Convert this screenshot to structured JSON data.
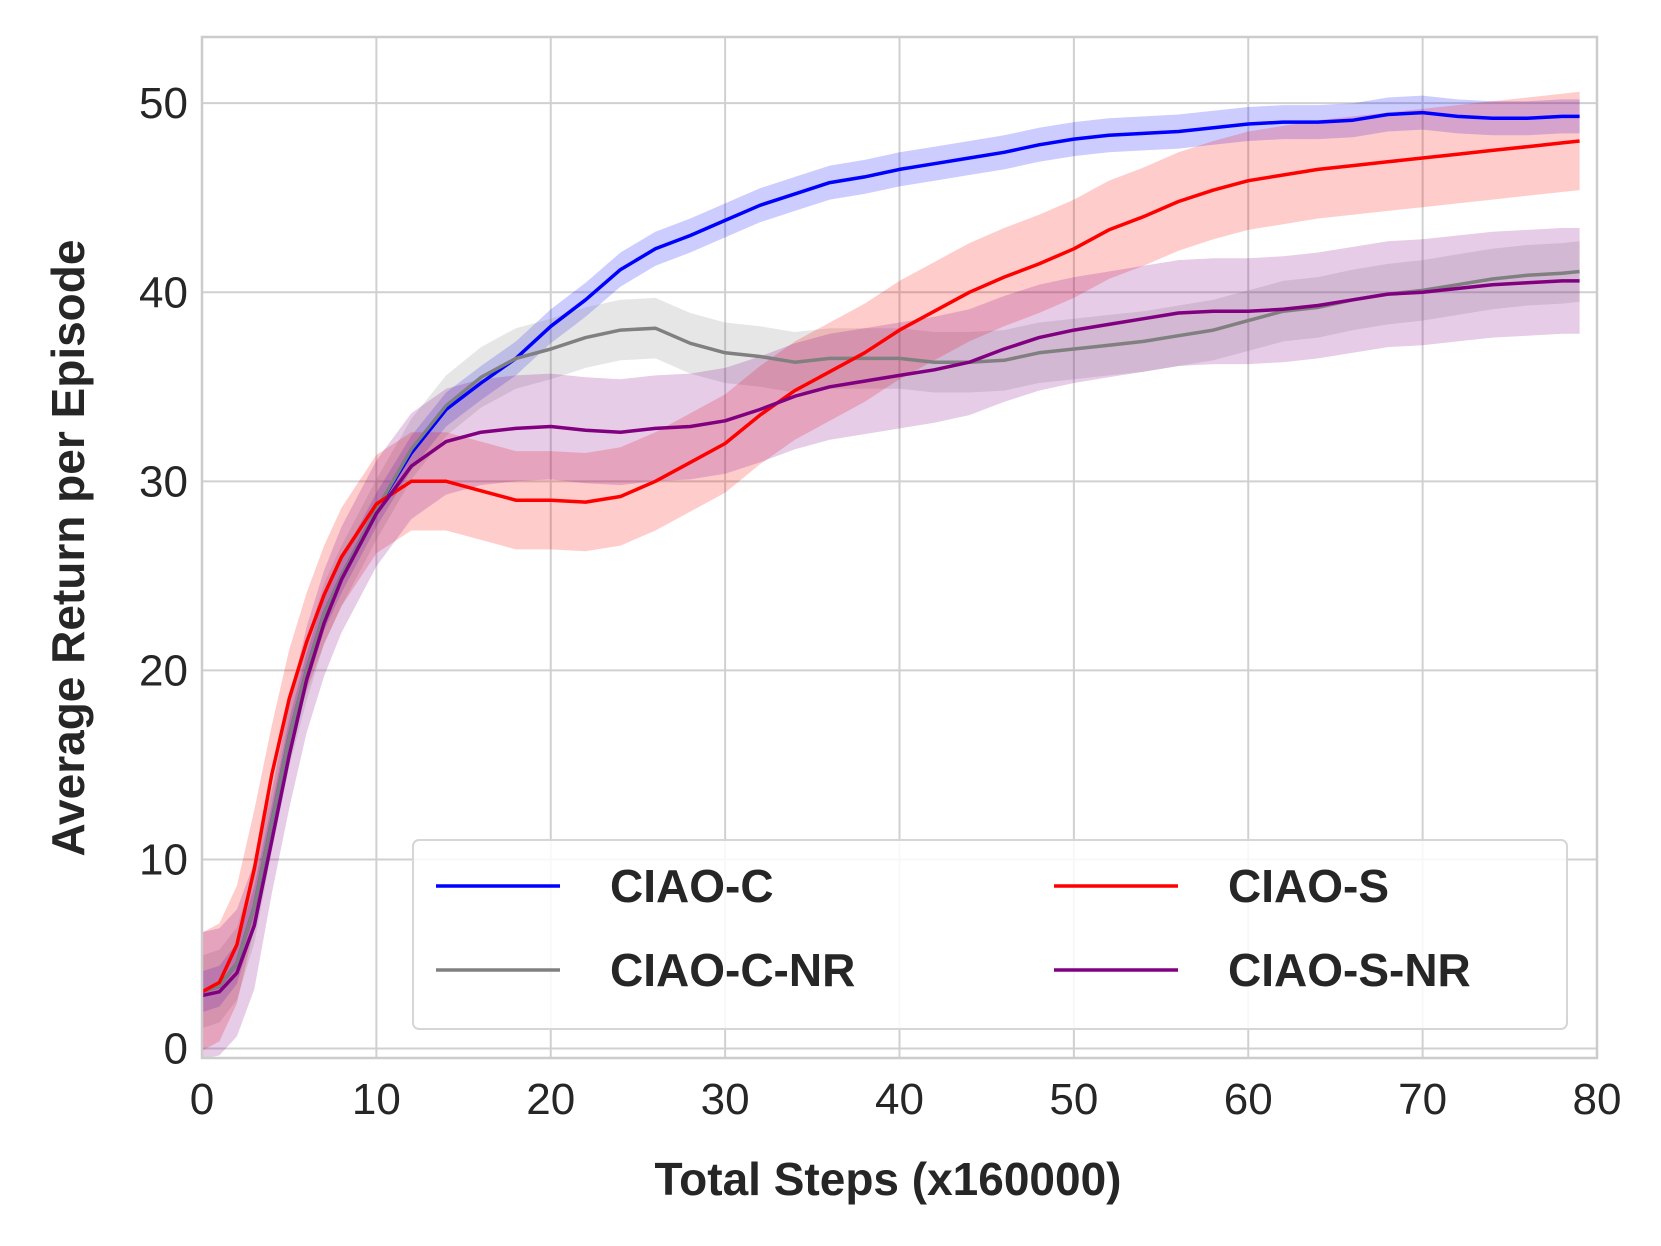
{
  "chart_data": {
    "type": "line",
    "title": "",
    "xlabel": "Total Steps (x160000)",
    "ylabel": "Average Return per Episode",
    "xlim": [
      0,
      80
    ],
    "ylim": [
      -0.5,
      53.5
    ],
    "xticks": [
      0,
      10,
      20,
      30,
      40,
      50,
      60,
      70,
      80
    ],
    "yticks": [
      0,
      10,
      20,
      30,
      40,
      50
    ],
    "grid": true,
    "legend_position": "lower-right",
    "x": [
      0,
      1,
      2,
      3,
      4,
      5,
      6,
      7,
      8,
      10,
      12,
      14,
      16,
      18,
      20,
      22,
      24,
      26,
      28,
      30,
      32,
      34,
      36,
      38,
      40,
      42,
      44,
      46,
      48,
      50,
      52,
      54,
      56,
      58,
      60,
      62,
      64,
      66,
      68,
      70,
      72,
      74,
      76,
      78,
      79
    ],
    "series": [
      {
        "name": "CIAO-C",
        "color": "#0000ff",
        "values": [
          3.0,
          3.3,
          4.5,
          7.5,
          12.0,
          16.5,
          20.0,
          23.0,
          25.0,
          28.5,
          31.5,
          33.8,
          35.2,
          36.5,
          38.2,
          39.6,
          41.2,
          42.3,
          43.0,
          43.8,
          44.6,
          45.2,
          45.8,
          46.1,
          46.5,
          46.8,
          47.1,
          47.4,
          47.8,
          48.1,
          48.3,
          48.4,
          48.5,
          48.7,
          48.9,
          49.0,
          49.0,
          49.1,
          49.4,
          49.5,
          49.3,
          49.2,
          49.2,
          49.3,
          49.3
        ],
        "band": 0.9
      },
      {
        "name": "CIAO-C-NR",
        "color": "#808080",
        "values": [
          3.0,
          3.3,
          4.5,
          7.5,
          12.0,
          16.5,
          20.0,
          23.0,
          25.0,
          28.5,
          31.7,
          34.0,
          35.5,
          36.5,
          37.0,
          37.6,
          38.0,
          38.1,
          37.3,
          36.8,
          36.6,
          36.3,
          36.5,
          36.5,
          36.5,
          36.3,
          36.3,
          36.4,
          36.8,
          37.0,
          37.2,
          37.4,
          37.7,
          38.0,
          38.5,
          39.0,
          39.2,
          39.6,
          39.9,
          40.1,
          40.4,
          40.7,
          40.9,
          41.0,
          41.1
        ],
        "band": 1.6
      },
      {
        "name": "CIAO-S",
        "color": "#ff0000",
        "values": [
          3.0,
          3.5,
          5.5,
          9.5,
          14.5,
          18.5,
          21.5,
          24.0,
          26.0,
          28.8,
          30.0,
          30.0,
          29.5,
          29.0,
          29.0,
          28.9,
          29.2,
          30.0,
          31.0,
          32.0,
          33.5,
          34.8,
          35.8,
          36.8,
          38.0,
          39.0,
          40.0,
          40.8,
          41.5,
          42.3,
          43.3,
          44.0,
          44.8,
          45.4,
          45.9,
          46.2,
          46.5,
          46.7,
          46.9,
          47.1,
          47.3,
          47.5,
          47.7,
          47.9,
          48.0
        ],
        "band": 2.6
      },
      {
        "name": "CIAO-S-NR",
        "color": "#800080",
        "values": [
          2.8,
          3.0,
          4.0,
          6.5,
          11.0,
          15.5,
          19.5,
          22.5,
          24.8,
          28.3,
          30.8,
          32.1,
          32.6,
          32.8,
          32.9,
          32.7,
          32.6,
          32.8,
          32.9,
          33.2,
          33.8,
          34.5,
          35.0,
          35.3,
          35.6,
          35.9,
          36.3,
          37.0,
          37.6,
          38.0,
          38.3,
          38.6,
          38.9,
          39.0,
          39.0,
          39.1,
          39.3,
          39.6,
          39.9,
          40.0,
          40.2,
          40.4,
          40.5,
          40.6,
          40.6
        ],
        "band": 2.8
      }
    ]
  },
  "legend": {
    "items": [
      {
        "label": "CIAO-C",
        "color": "#0000ff"
      },
      {
        "label": "CIAO-S",
        "color": "#ff0000"
      },
      {
        "label": "CIAO-C-NR",
        "color": "#808080"
      },
      {
        "label": "CIAO-S-NR",
        "color": "#800080"
      }
    ]
  }
}
